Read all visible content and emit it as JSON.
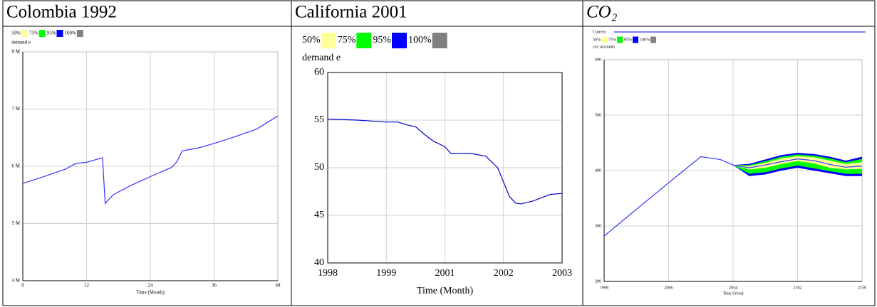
{
  "chart_data": [
    {
      "type": "line",
      "title": "Colombia 1992",
      "ylabel": "demand e",
      "xlabel": "Time (Month)",
      "legend": [
        {
          "label": "50%",
          "color": "#ffff99"
        },
        {
          "label": "75%",
          "color": "#00ff00"
        },
        {
          "label": "95%",
          "color": "#0000ff"
        },
        {
          "label": "100%",
          "color": "#808080"
        }
      ],
      "x": [
        0,
        4,
        8,
        10,
        12,
        15,
        15.5,
        17,
        20,
        24,
        28,
        29,
        30,
        33,
        36,
        40,
        44,
        48
      ],
      "values": [
        5700000,
        5820000,
        5950000,
        6050000,
        6070000,
        6150000,
        5350000,
        5500000,
        5650000,
        5820000,
        5980000,
        6080000,
        6270000,
        6320000,
        6400000,
        6520000,
        6650000,
        6880000
      ],
      "color": "#3333ff",
      "xlim": [
        0,
        48
      ],
      "xticks": [
        0,
        12,
        24,
        36,
        48
      ],
      "ylim": [
        4000000,
        8000000
      ],
      "yticks": [
        {
          "value": 4000000,
          "label": "4 M"
        },
        {
          "value": 5000000,
          "label": "5 M"
        },
        {
          "value": 6000000,
          "label": "6 M"
        },
        {
          "value": 7000000,
          "label": "7 M"
        },
        {
          "value": 8000000,
          "label": "8 M"
        }
      ],
      "grid": true
    },
    {
      "type": "line",
      "title": "California 2001",
      "ylabel": "demand e",
      "xlabel": "Time (Month)",
      "legend": [
        {
          "label": "50%",
          "color": "#ffff99"
        },
        {
          "label": "75%",
          "color": "#00ff00"
        },
        {
          "label": "95%",
          "color": "#0000ff"
        },
        {
          "label": "100%",
          "color": "#808080"
        }
      ],
      "x": [
        0,
        0.5,
        1,
        1.2,
        1.35,
        1.5,
        1.65,
        1.8,
        2,
        2.1,
        2.45,
        2.7,
        2.9,
        3,
        3.1,
        3.2,
        3.3,
        3.5,
        3.8,
        4
      ],
      "values": [
        55.1,
        55,
        54.8,
        54.8,
        54.5,
        54.3,
        53.5,
        52.8,
        52.2,
        51.5,
        51.5,
        51.2,
        50,
        48.5,
        47,
        46.3,
        46.2,
        46.5,
        47.2,
        47.3
      ],
      "color": "#0000cc",
      "xlim": [
        0,
        4
      ],
      "xticks": [
        {
          "value": 0,
          "label": "1998"
        },
        {
          "value": 1,
          "label": "1999"
        },
        {
          "value": 2,
          "label": "2001"
        },
        {
          "value": 3,
          "label": "2002"
        },
        {
          "value": 4,
          "label": "2003"
        }
      ],
      "ylim": [
        40,
        60
      ],
      "yticks": [
        40,
        45,
        50,
        55,
        60
      ],
      "grid": true
    },
    {
      "type": "line",
      "title": "CO₂",
      "ylabel": "co2 accounts",
      "xlabel": "Time (Year)",
      "legend": [
        {
          "label": "50%",
          "color": "#ffff99",
          "lower": [
            null,
            null,
            null,
            null,
            null,
            410,
            402,
            405,
            412,
            417,
            413,
            405,
            402,
            403
          ],
          "upper": [
            null,
            null,
            null,
            null,
            null,
            410,
            408,
            414,
            422,
            426,
            424,
            418,
            412,
            415
          ]
        },
        {
          "label": "75%",
          "color": "#00ff00",
          "lower": [
            null,
            null,
            null,
            null,
            null,
            410,
            394,
            397,
            404,
            409,
            404,
            399,
            394,
            394
          ],
          "upper": [
            null,
            null,
            null,
            null,
            null,
            410,
            410,
            417,
            425,
            429,
            427,
            422,
            415,
            421
          ]
        },
        {
          "label": "95%",
          "color": "#0000ff",
          "lower": [
            null,
            null,
            null,
            null,
            null,
            410,
            390,
            393,
            400,
            405,
            400,
            395,
            390,
            390
          ],
          "upper": [
            null,
            null,
            null,
            null,
            null,
            410,
            412,
            420,
            428,
            432,
            430,
            425,
            418,
            425
          ]
        },
        {
          "label": "100%",
          "color": "#808080"
        }
      ],
      "x": [
        0,
        0.5,
        1,
        1.5,
        1.8,
        2,
        2.25,
        2.5,
        2.75,
        3,
        3.25,
        3.5,
        3.75,
        4
      ],
      "series": [
        {
          "name": "Current",
          "color": "#3333ff",
          "values": [
            282,
            330,
            378,
            425,
            420,
            410,
            405,
            410,
            416,
            421,
            418,
            411,
            406,
            408
          ]
        }
      ],
      "xlim": [
        0,
        4
      ],
      "xticks": [
        {
          "value": 0,
          "label": "1998"
        },
        {
          "value": 1,
          "label": "2006"
        },
        {
          "value": 2,
          "label": "2054"
        },
        {
          "value": 3,
          "label": "2102"
        },
        {
          "value": 4,
          "label": "2150"
        }
      ],
      "ylim": [
        200,
        600
      ],
      "yticks": [
        200,
        300,
        400,
        500,
        600
      ],
      "grid": true
    }
  ]
}
